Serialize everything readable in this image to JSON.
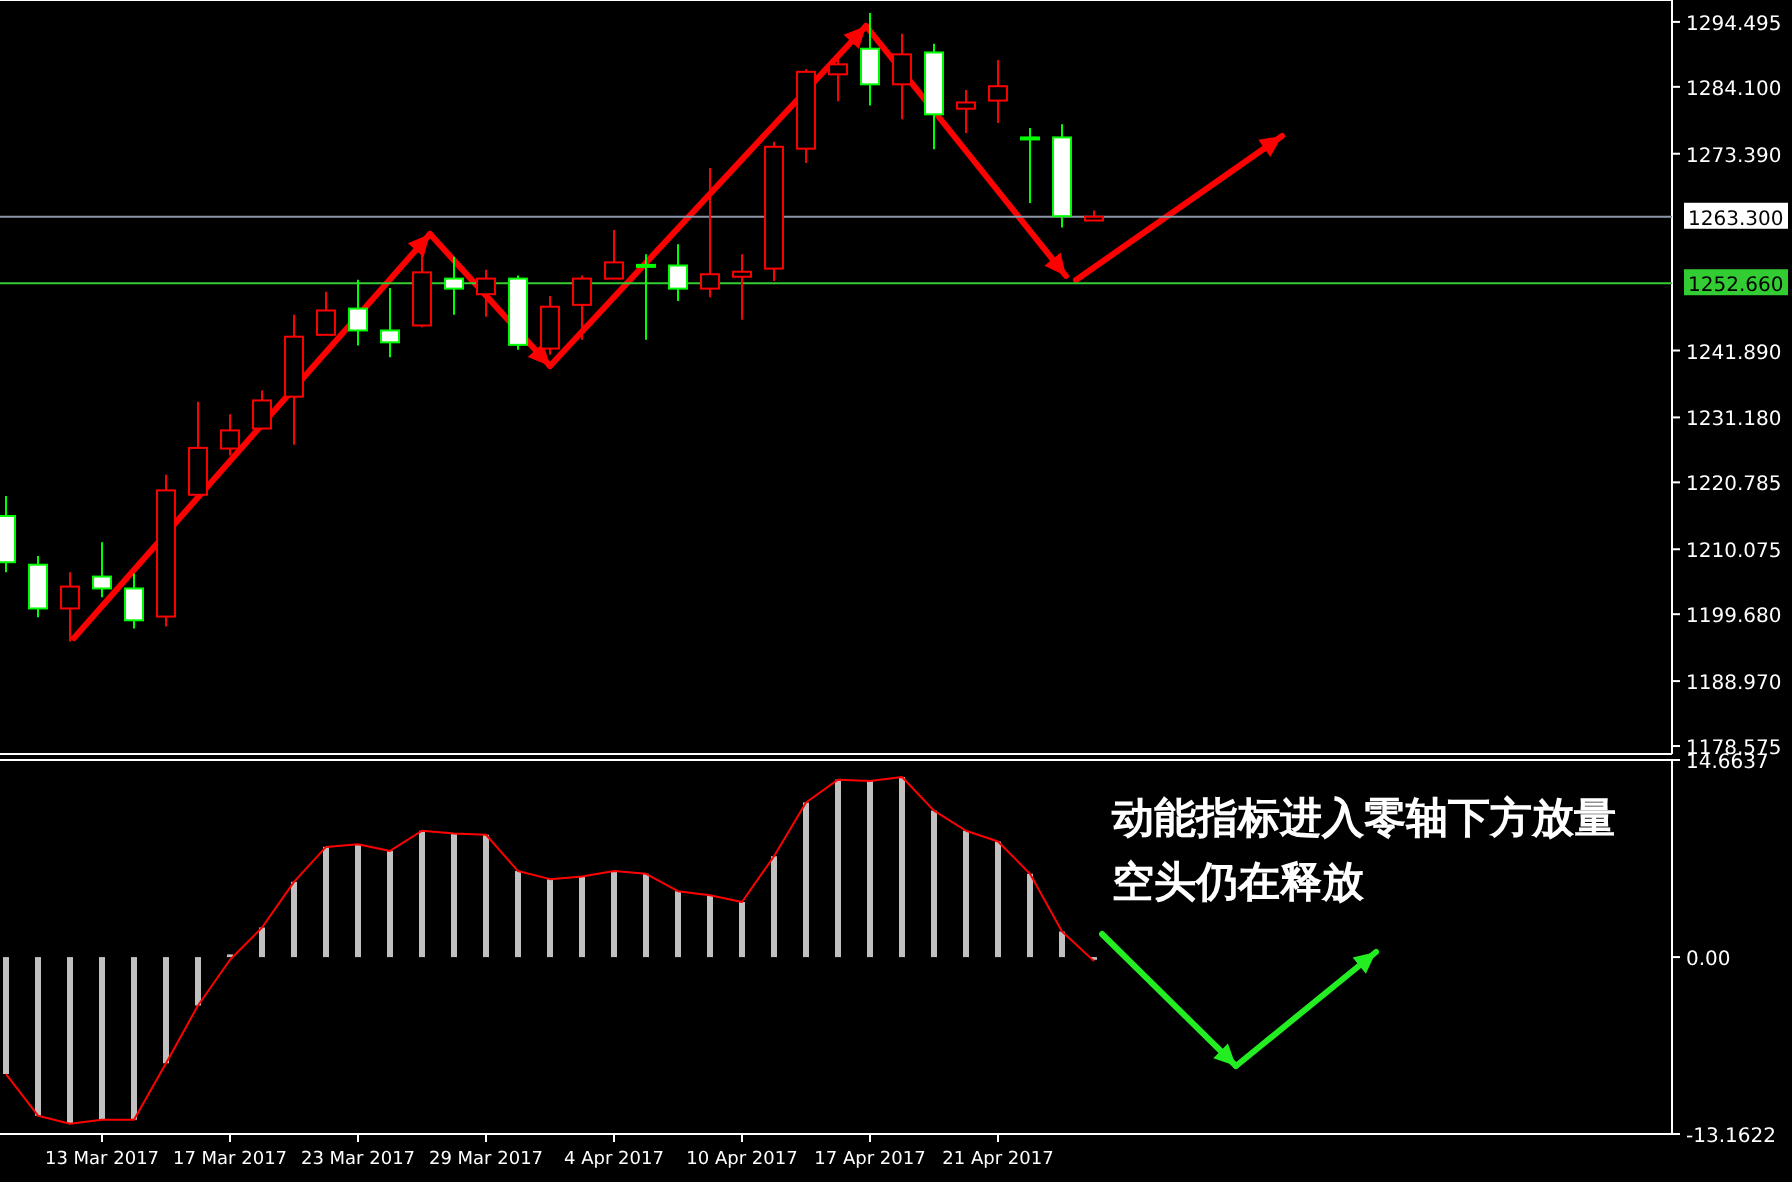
{
  "chart_data": [
    {
      "type": "candlestick",
      "categories": [
        null,
        null,
        null,
        null,
        null,
        null,
        null,
        null,
        null,
        null,
        null,
        null,
        null,
        null,
        null,
        null,
        null,
        null,
        null,
        null,
        null,
        null,
        null,
        null,
        null,
        null,
        null,
        null,
        null,
        null,
        null,
        null,
        null,
        null,
        null,
        null,
        null,
        null,
        null,
        null,
        null,
        null,
        null,
        null,
        null,
        null,
        null,
        null,
        null,
        null,
        null,
        null
      ],
      "ohlc": [
        [
          1215.4,
          1218.6,
          1206.4,
          1208.0
        ],
        [
          1207.6,
          1209.0,
          1199.2,
          1200.6
        ],
        [
          1200.6,
          1206.4,
          1195.3,
          1204.1
        ],
        [
          1205.7,
          1211.2,
          1202.4,
          1203.8
        ],
        [
          1203.8,
          1206.2,
          1197.4,
          1198.7
        ],
        [
          1199.3,
          1222.0,
          1197.7,
          1219.5
        ],
        [
          1218.8,
          1233.7,
          1218.8,
          1226.3
        ],
        [
          1226.2,
          1231.7,
          1225.1,
          1229.1
        ],
        [
          1229.4,
          1235.5,
          1229.4,
          1233.9
        ],
        [
          1234.5,
          1247.6,
          1226.8,
          1244.1
        ],
        [
          1244.4,
          1251.3,
          1244.4,
          1248.3
        ],
        [
          1248.6,
          1253.2,
          1242.7,
          1245.1
        ],
        [
          1245.1,
          1251.9,
          1240.8,
          1243.2
        ],
        [
          1245.9,
          1259.6,
          1245.6,
          1254.4
        ],
        [
          1253.4,
          1256.9,
          1247.6,
          1251.8
        ],
        [
          1250.9,
          1254.8,
          1247.3,
          1253.4
        ],
        [
          1253.4,
          1253.9,
          1242.0,
          1242.8
        ],
        [
          1242.2,
          1250.6,
          1241.2,
          1248.9
        ],
        [
          1249.2,
          1253.9,
          1243.6,
          1253.4
        ],
        [
          1253.4,
          1261.2,
          1253.4,
          1256.0
        ],
        [
          1255.6,
          1257.3,
          1243.6,
          1255.4
        ],
        [
          1255.5,
          1258.9,
          1249.8,
          1251.8
        ],
        [
          1251.8,
          1271.1,
          1250.4,
          1254.1
        ],
        [
          1253.7,
          1257.3,
          1246.8,
          1254.5
        ],
        [
          1255.0,
          1275.3,
          1253.0,
          1274.5
        ],
        [
          1274.2,
          1286.9,
          1271.9,
          1286.5
        ],
        [
          1286.1,
          1288.6,
          1281.8,
          1287.7
        ],
        [
          1290.2,
          1295.9,
          1281.1,
          1284.5
        ],
        [
          1284.5,
          1292.6,
          1278.9,
          1289.3
        ],
        [
          1289.6,
          1291.0,
          1274.1,
          1279.7
        ],
        [
          1280.6,
          1283.6,
          1276.7,
          1281.6
        ],
        [
          1281.9,
          1288.4,
          1278.3,
          1284.2
        ],
        [
          1276.0,
          1277.5,
          1265.5,
          1275.7
        ],
        [
          1276.0,
          1278.1,
          1261.6,
          1263.4
        ],
        [
          1262.7,
          1264.3,
          1262.7,
          1263.3
        ],
        null,
        null,
        null,
        null,
        null,
        null,
        null,
        null,
        null,
        null,
        null,
        null,
        null,
        null,
        null,
        null,
        null
      ],
      "ylim": [
        1177.3,
        1298.0
      ],
      "yticks": [
        1294.495,
        {
          "value": 1284.1,
          "label": "1284.100"
        },
        {
          "value": 1273.39,
          "label": "1273.390"
        },
        {
          "value": 1241.89,
          "label": "1241.890"
        },
        {
          "value": 1231.18,
          "label": "1231.180"
        },
        1220.785,
        1210.075,
        {
          "value": 1199.68,
          "label": "1199.680"
        },
        {
          "value": 1188.97,
          "label": "1188.970"
        },
        1178.575
      ],
      "ref_lines": [
        {
          "axis": "y",
          "value": 1263.3,
          "label": "1263.300",
          "color": "#8c96a8"
        },
        {
          "axis": "y",
          "value": 1252.66,
          "label": "1252.660",
          "color": "#33cc33"
        }
      ],
      "tick_labels": "y",
      "grid": false
    },
    {
      "type": "bar",
      "categories": [
        null,
        null,
        null,
        "13 Mar 2017",
        null,
        null,
        null,
        "17 Mar 2017",
        null,
        null,
        null,
        "23 Mar 2017",
        null,
        null,
        null,
        "29 Mar 2017",
        null,
        null,
        null,
        "4 Apr 2017",
        null,
        null,
        null,
        "10 Apr 2017",
        null,
        null,
        null,
        "17 Apr 2017",
        null,
        null,
        null,
        "21 Apr 2017",
        null,
        null,
        null,
        null,
        null,
        null,
        null,
        null,
        null,
        null,
        null,
        null,
        null,
        null,
        null,
        null,
        null,
        null,
        null,
        null
      ],
      "series": [
        {
          "color": "#c0c0c0",
          "values": [
            -8.7,
            -11.8,
            -12.4,
            -12.1,
            -12.1,
            -7.9,
            -3.6,
            0.2,
            2.2,
            5.6,
            8.2,
            8.4,
            7.9,
            9.4,
            9.2,
            9.1,
            6.4,
            5.8,
            6.0,
            6.4,
            6.2,
            4.9,
            4.6,
            4.1,
            7.5,
            11.5,
            13.2,
            13.1,
            13.4,
            10.9,
            9.4,
            8.6,
            6.2,
            1.9,
            -0.2,
            null,
            null,
            null,
            null,
            null,
            null,
            null,
            null,
            null,
            null,
            null,
            null,
            null,
            null,
            null,
            null,
            null
          ]
        },
        {
          "type": "line",
          "color": "#ff0000",
          "values": [
            -8.7,
            -11.8,
            -12.4,
            -12.1,
            -12.1,
            -7.9,
            -3.6,
            -0.2,
            2.2,
            5.6,
            8.2,
            8.4,
            7.9,
            9.4,
            9.2,
            9.1,
            6.4,
            5.8,
            6.0,
            6.4,
            6.2,
            4.9,
            4.6,
            4.1,
            7.5,
            11.5,
            13.2,
            13.1,
            13.4,
            10.9,
            9.4,
            8.6,
            6.2,
            1.9,
            -0.3,
            null,
            null,
            null,
            null,
            null,
            null,
            null,
            null,
            null,
            null,
            null,
            null,
            null,
            null,
            null,
            null,
            null
          ]
        }
      ],
      "ylim": [
        -13.1622,
        14.6637
      ],
      "yticks": [
        14.6637,
        {
          "value": 0,
          "label": "0.00"
        },
        -13.1622
      ],
      "annotations": [
        "动能指标进入零轴下方放量",
        "空头仍在释放"
      ],
      "grid": false
    }
  ]
}
